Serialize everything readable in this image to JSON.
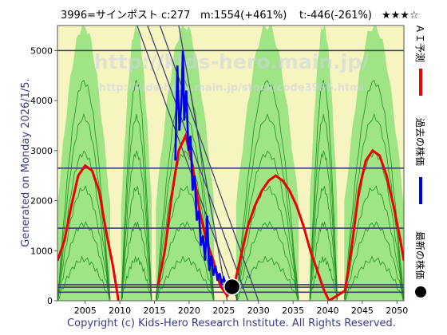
{
  "header": {
    "ticker": "3996=サインポスト",
    "current": "c:277",
    "max": "m:1554(+461%)",
    "min": "t:-446(-261%)",
    "rating": "★★★☆"
  },
  "side_label": "Generated on Monday 2026/1/5.",
  "watermark": {
    "line1": "http://kids-hero.main.jp/",
    "line2": "http://kids-hero.main.jp/stock/code3996.html"
  },
  "footer": "Copyright (c) Kids-Hero Research Institute. All Rights Reserved.",
  "legend": [
    {
      "label": "ＡＩ予測",
      "color": "#ee0000"
    },
    {
      "label": "過去の株価",
      "color": "#0000ee"
    },
    {
      "label": "最新の株価",
      "color": "#000000"
    }
  ],
  "colors": {
    "background": "#f6f4bf",
    "band_green": "#8fe07a",
    "forecast_lines": "#1f8f1f",
    "hlines": "#3a3a6e",
    "trend_lines": "#3a3a6e",
    "ai_forecast": "#ee0000",
    "past_price": "#0000ee",
    "latest_point": "#000000"
  },
  "chart_data": {
    "type": "line",
    "xlim": [
      2001,
      2051
    ],
    "ylim": [
      0,
      5500
    ],
    "x_ticks": [
      2005,
      2010,
      2015,
      2020,
      2025,
      2030,
      2035,
      2040,
      2045,
      2050
    ],
    "y_ticks": [
      0,
      1000,
      2000,
      3000,
      4000,
      5000
    ],
    "horizontal_levels": [
      5000,
      2650,
      1450,
      320,
      270,
      170
    ],
    "trend_lines": [
      {
        "from": [
          2012.5,
          5500
        ],
        "to": [
          2027.0,
          0
        ]
      },
      {
        "from": [
          2014.0,
          5500
        ],
        "to": [
          2028.5,
          0
        ]
      },
      {
        "from": [
          2015.8,
          5500
        ],
        "to": [
          2030.0,
          0
        ]
      },
      {
        "from": [
          2018.5,
          5500
        ],
        "to": [
          2025.5,
          0
        ]
      }
    ],
    "ai_forecast": {
      "name": "ＡＩ予測",
      "x": [
        2001,
        2002,
        2003,
        2004,
        2005,
        2006,
        2007,
        2008,
        2009,
        2009.8,
        2015.5,
        2016.5,
        2017.5,
        2018.5,
        2019.5,
        2020.5,
        2021.5,
        2022.5,
        2023.5,
        2024.5,
        2025.5,
        2026.5,
        2027.5,
        2028.5,
        2029.5,
        2030.5,
        2031.5,
        2032.5,
        2033.5,
        2034.5,
        2035.5,
        2036.5,
        2037.5,
        2038.5,
        2039.5,
        2040.2,
        2042.5,
        2043.5,
        2044.5,
        2045.5,
        2046.5,
        2047.5,
        2048.5,
        2049.5,
        2050.5,
        2051
      ],
      "y": [
        800,
        1200,
        1900,
        2500,
        2700,
        2600,
        2200,
        1400,
        700,
        0,
        300,
        1000,
        2100,
        3000,
        3300,
        2700,
        1800,
        1200,
        800,
        300,
        100,
        300,
        900,
        1500,
        1900,
        2200,
        2400,
        2500,
        2400,
        2200,
        1900,
        1500,
        1000,
        600,
        200,
        0,
        200,
        1100,
        2200,
        2800,
        3000,
        2900,
        2500,
        1900,
        1200,
        800
      ]
    },
    "past_price": {
      "name": "過去の株価",
      "x": [
        2018.0,
        2018.3,
        2018.6,
        2018.9,
        2019.1,
        2019.3,
        2019.6,
        2019.9,
        2020.2,
        2020.5,
        2020.8,
        2021.1,
        2021.4,
        2021.7,
        2022.0,
        2022.3,
        2022.6,
        2022.9,
        2023.2,
        2023.5,
        2023.8,
        2024.1,
        2024.4,
        2024.7,
        2025.0,
        2025.4,
        2025.8
      ],
      "y": [
        2800,
        4700,
        3400,
        4000,
        5000,
        3600,
        4200,
        3000,
        3300,
        2200,
        2500,
        1600,
        1800,
        1100,
        1300,
        800,
        1700,
        600,
        900,
        500,
        700,
        400,
        550,
        350,
        450,
        300,
        280
      ]
    },
    "latest_point": {
      "name": "最新の株価",
      "x": 2026.2,
      "y": 277
    }
  }
}
